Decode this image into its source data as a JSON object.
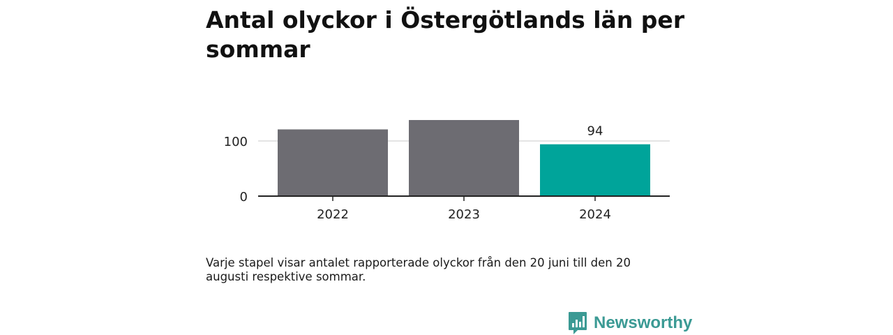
{
  "chart_data": {
    "type": "bar",
    "title": "Antal olyckor i Östergötlands län per sommar",
    "categories": [
      "2022",
      "2023",
      "2024"
    ],
    "values": [
      121,
      138,
      94
    ],
    "colors": [
      "#6d6c72",
      "#6d6c72",
      "#00a49a"
    ],
    "data_labels": [
      null,
      null,
      "94"
    ],
    "y_ticks": [
      0,
      100
    ],
    "ylim": [
      0,
      140
    ],
    "xlabel": "",
    "ylabel": "",
    "grid": true,
    "legend": "none"
  },
  "note": "Varje stapel visar antalet rapporterade olyckor från den 20 juni till den 20 augusti respektive sommar.",
  "brand": {
    "name": "Newsworthy",
    "icon": "newsworthy-logo-icon",
    "color": "#3b9a94"
  }
}
